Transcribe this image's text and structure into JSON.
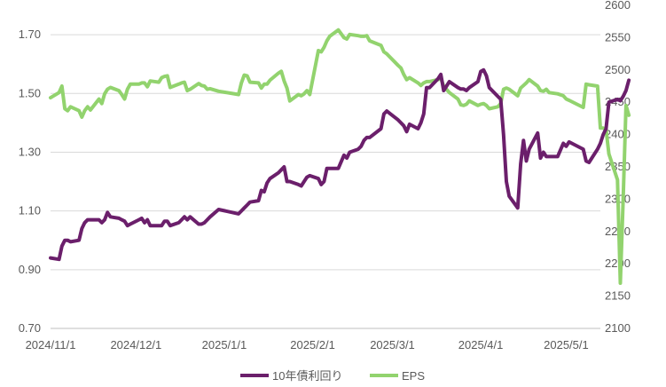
{
  "chart_data": {
    "type": "line",
    "title": "",
    "xlabel": "",
    "ylabel": "",
    "x_ticks": [
      "2024/11/1",
      "2024/12/1",
      "2025/1/1",
      "2025/2/1",
      "2025/3/1",
      "2025/4/1",
      "2025/5/1"
    ],
    "x_range": [
      "2024-11-01",
      "2025-05-13"
    ],
    "y_left": {
      "ticks": [
        "0.70",
        "0.90",
        "1.10",
        "1.30",
        "1.50",
        "1.70"
      ],
      "range": [
        0.7,
        1.8
      ]
    },
    "y_right": {
      "ticks": [
        "2100",
        "2150",
        "2200",
        "2250",
        "2300",
        "2350",
        "2400",
        "2450",
        "2500",
        "2550",
        "2600"
      ],
      "range": [
        2100,
        2600
      ]
    },
    "grid": "horizontal",
    "legend_position": "bottom",
    "colors": {
      "yield": "#6b1f6b",
      "eps": "#92d36e",
      "grid": "#d9d9d9",
      "axis": "#bfbfbf",
      "text": "#595959"
    },
    "series": [
      {
        "name": "10年債利回り",
        "axis": "left",
        "points": [
          [
            "2024-11-01",
            0.94
          ],
          [
            "2024-11-04",
            0.935
          ],
          [
            "2024-11-05",
            0.98
          ],
          [
            "2024-11-06",
            1.0
          ],
          [
            "2024-11-07",
            1.0
          ],
          [
            "2024-11-08",
            0.995
          ],
          [
            "2024-11-11",
            1.0
          ],
          [
            "2024-11-12",
            1.04
          ],
          [
            "2024-11-13",
            1.06
          ],
          [
            "2024-11-14",
            1.07
          ],
          [
            "2024-11-15",
            1.07
          ],
          [
            "2024-11-18",
            1.07
          ],
          [
            "2024-11-19",
            1.06
          ],
          [
            "2024-11-20",
            1.07
          ],
          [
            "2024-11-21",
            1.095
          ],
          [
            "2024-11-22",
            1.08
          ],
          [
            "2024-11-25",
            1.075
          ],
          [
            "2024-11-26",
            1.07
          ],
          [
            "2024-11-27",
            1.065
          ],
          [
            "2024-11-28",
            1.05
          ],
          [
            "2024-11-29",
            1.055
          ],
          [
            "2024-12-02",
            1.07
          ],
          [
            "2024-12-03",
            1.075
          ],
          [
            "2024-12-04",
            1.06
          ],
          [
            "2024-12-05",
            1.07
          ],
          [
            "2024-12-06",
            1.05
          ],
          [
            "2024-12-09",
            1.05
          ],
          [
            "2024-12-10",
            1.05
          ],
          [
            "2024-12-11",
            1.065
          ],
          [
            "2024-12-12",
            1.065
          ],
          [
            "2024-12-13",
            1.05
          ],
          [
            "2024-12-16",
            1.06
          ],
          [
            "2024-12-17",
            1.07
          ],
          [
            "2024-12-18",
            1.08
          ],
          [
            "2024-12-19",
            1.07
          ],
          [
            "2024-12-20",
            1.08
          ],
          [
            "2024-12-23",
            1.055
          ],
          [
            "2024-12-24",
            1.055
          ],
          [
            "2024-12-25",
            1.06
          ],
          [
            "2024-12-26",
            1.07
          ],
          [
            "2024-12-27",
            1.08
          ],
          [
            "2024-12-30",
            1.105
          ],
          [
            "2025-01-06",
            1.09
          ],
          [
            "2025-01-07",
            1.1
          ],
          [
            "2025-01-08",
            1.11
          ],
          [
            "2025-01-09",
            1.12
          ],
          [
            "2025-01-10",
            1.13
          ],
          [
            "2025-01-13",
            1.135
          ],
          [
            "2025-01-14",
            1.17
          ],
          [
            "2025-01-15",
            1.165
          ],
          [
            "2025-01-16",
            1.195
          ],
          [
            "2025-01-17",
            1.21
          ],
          [
            "2025-01-20",
            1.23
          ],
          [
            "2025-01-21",
            1.24
          ],
          [
            "2025-01-22",
            1.25
          ],
          [
            "2025-01-23",
            1.2
          ],
          [
            "2025-01-24",
            1.2
          ],
          [
            "2025-01-27",
            1.19
          ],
          [
            "2025-01-28",
            1.185
          ],
          [
            "2025-01-29",
            1.2
          ],
          [
            "2025-01-30",
            1.215
          ],
          [
            "2025-01-31",
            1.22
          ],
          [
            "2025-02-03",
            1.21
          ],
          [
            "2025-02-04",
            1.19
          ],
          [
            "2025-02-05",
            1.2
          ],
          [
            "2025-02-06",
            1.245
          ],
          [
            "2025-02-07",
            1.245
          ],
          [
            "2025-02-10",
            1.245
          ],
          [
            "2025-02-12",
            1.29
          ],
          [
            "2025-02-13",
            1.28
          ],
          [
            "2025-02-14",
            1.3
          ],
          [
            "2025-02-17",
            1.31
          ],
          [
            "2025-02-18",
            1.32
          ],
          [
            "2025-02-19",
            1.34
          ],
          [
            "2025-02-20",
            1.35
          ],
          [
            "2025-02-21",
            1.35
          ],
          [
            "2025-02-25",
            1.38
          ],
          [
            "2025-02-26",
            1.43
          ],
          [
            "2025-02-27",
            1.44
          ],
          [
            "2025-03-03",
            1.41
          ],
          [
            "2025-03-04",
            1.4
          ],
          [
            "2025-03-05",
            1.39
          ],
          [
            "2025-03-06",
            1.37
          ],
          [
            "2025-03-07",
            1.395
          ],
          [
            "2025-03-10",
            1.38
          ],
          [
            "2025-03-11",
            1.4
          ],
          [
            "2025-03-12",
            1.43
          ],
          [
            "2025-03-13",
            1.52
          ],
          [
            "2025-03-14",
            1.52
          ],
          [
            "2025-03-17",
            1.55
          ],
          [
            "2025-03-18",
            1.565
          ],
          [
            "2025-03-19",
            1.51
          ],
          [
            "2025-03-21",
            1.54
          ],
          [
            "2025-03-24",
            1.52
          ],
          [
            "2025-03-25",
            1.515
          ],
          [
            "2025-03-26",
            1.515
          ],
          [
            "2025-03-27",
            1.51
          ],
          [
            "2025-03-28",
            1.52
          ],
          [
            "2025-03-31",
            1.54
          ],
          [
            "2025-04-01",
            1.575
          ],
          [
            "2025-04-02",
            1.58
          ],
          [
            "2025-04-03",
            1.56
          ],
          [
            "2025-04-04",
            1.52
          ],
          [
            "2025-04-07",
            1.49
          ],
          [
            "2025-04-08",
            1.48
          ],
          [
            "2025-04-09",
            1.36
          ],
          [
            "2025-04-10",
            1.2
          ],
          [
            "2025-04-11",
            1.15
          ],
          [
            "2025-04-14",
            1.11
          ],
          [
            "2025-04-15",
            1.26
          ],
          [
            "2025-04-16",
            1.34
          ],
          [
            "2025-04-17",
            1.27
          ],
          [
            "2025-04-18",
            1.31
          ],
          [
            "2025-04-21",
            1.365
          ],
          [
            "2025-04-22",
            1.28
          ],
          [
            "2025-04-23",
            1.3
          ],
          [
            "2025-04-24",
            1.285
          ],
          [
            "2025-04-25",
            1.285
          ],
          [
            "2025-04-28",
            1.285
          ],
          [
            "2025-04-30",
            1.33
          ],
          [
            "2025-05-01",
            1.32
          ],
          [
            "2025-05-02",
            1.335
          ],
          [
            "2025-05-07",
            1.31
          ],
          [
            "2025-05-08",
            1.27
          ],
          [
            "2025-05-09",
            1.265
          ],
          [
            "2025-05-12",
            1.31
          ],
          [
            "2025-05-13",
            1.33
          ],
          [
            "2025-05-14",
            1.36
          ],
          [
            "2025-05-15",
            1.38
          ],
          [
            "2025-05-16",
            1.47
          ],
          [
            "2025-05-19",
            1.48
          ],
          [
            "2025-05-20",
            1.475
          ],
          [
            "2025-05-21",
            1.49
          ],
          [
            "2025-05-22",
            1.51
          ],
          [
            "2025-05-23",
            1.545
          ]
        ]
      },
      {
        "name": "EPS",
        "axis": "right",
        "points": [
          [
            "2024-11-01",
            2457
          ],
          [
            "2024-11-04",
            2465
          ],
          [
            "2024-11-05",
            2475
          ],
          [
            "2024-11-06",
            2440
          ],
          [
            "2024-11-07",
            2437
          ],
          [
            "2024-11-08",
            2443
          ],
          [
            "2024-11-11",
            2437
          ],
          [
            "2024-11-12",
            2427
          ],
          [
            "2024-11-13",
            2437
          ],
          [
            "2024-11-14",
            2443
          ],
          [
            "2024-11-15",
            2438
          ],
          [
            "2024-11-18",
            2455
          ],
          [
            "2024-11-19",
            2448
          ],
          [
            "2024-11-20",
            2463
          ],
          [
            "2024-11-21",
            2470
          ],
          [
            "2024-11-22",
            2473
          ],
          [
            "2024-11-25",
            2468
          ],
          [
            "2024-11-26",
            2462
          ],
          [
            "2024-11-27",
            2455
          ],
          [
            "2024-11-28",
            2470
          ],
          [
            "2024-11-29",
            2478
          ],
          [
            "2024-12-02",
            2478
          ],
          [
            "2024-12-03",
            2480
          ],
          [
            "2024-12-04",
            2480
          ],
          [
            "2024-12-05",
            2474
          ],
          [
            "2024-12-06",
            2483
          ],
          [
            "2024-12-09",
            2481
          ],
          [
            "2024-12-10",
            2488
          ],
          [
            "2024-12-11",
            2490
          ],
          [
            "2024-12-12",
            2491
          ],
          [
            "2024-12-13",
            2473
          ],
          [
            "2024-12-16",
            2478
          ],
          [
            "2024-12-17",
            2480
          ],
          [
            "2024-12-18",
            2481
          ],
          [
            "2024-12-19",
            2468
          ],
          [
            "2024-12-20",
            2470
          ],
          [
            "2024-12-23",
            2479
          ],
          [
            "2024-12-24",
            2476
          ],
          [
            "2024-12-25",
            2475
          ],
          [
            "2024-12-26",
            2470
          ],
          [
            "2024-12-27",
            2471
          ],
          [
            "2024-12-30",
            2467
          ],
          [
            "2025-01-06",
            2462
          ],
          [
            "2025-01-07",
            2480
          ],
          [
            "2025-01-08",
            2492
          ],
          [
            "2025-01-09",
            2491
          ],
          [
            "2025-01-10",
            2481
          ],
          [
            "2025-01-13",
            2480
          ],
          [
            "2025-01-14",
            2472
          ],
          [
            "2025-01-15",
            2478
          ],
          [
            "2025-01-16",
            2478
          ],
          [
            "2025-01-17",
            2484
          ],
          [
            "2025-01-20",
            2495
          ],
          [
            "2025-01-21",
            2498
          ],
          [
            "2025-01-22",
            2483
          ],
          [
            "2025-01-23",
            2472
          ],
          [
            "2025-01-24",
            2452
          ],
          [
            "2025-01-27",
            2462
          ],
          [
            "2025-01-28",
            2460
          ],
          [
            "2025-01-29",
            2463
          ],
          [
            "2025-01-30",
            2468
          ],
          [
            "2025-01-31",
            2462
          ],
          [
            "2025-02-03",
            2530
          ],
          [
            "2025-02-04",
            2528
          ],
          [
            "2025-02-05",
            2535
          ],
          [
            "2025-02-06",
            2545
          ],
          [
            "2025-02-07",
            2552
          ],
          [
            "2025-02-10",
            2562
          ],
          [
            "2025-02-12",
            2550
          ],
          [
            "2025-02-13",
            2548
          ],
          [
            "2025-02-14",
            2555
          ],
          [
            "2025-02-17",
            2553
          ],
          [
            "2025-02-18",
            2552
          ],
          [
            "2025-02-19",
            2552
          ],
          [
            "2025-02-20",
            2553
          ],
          [
            "2025-02-21",
            2545
          ],
          [
            "2025-02-25",
            2538
          ],
          [
            "2025-02-26",
            2528
          ],
          [
            "2025-02-27",
            2525
          ],
          [
            "2025-03-03",
            2507
          ],
          [
            "2025-03-04",
            2503
          ],
          [
            "2025-03-05",
            2493
          ],
          [
            "2025-03-06",
            2485
          ],
          [
            "2025-03-07",
            2488
          ],
          [
            "2025-03-10",
            2480
          ],
          [
            "2025-03-11",
            2476
          ],
          [
            "2025-03-12",
            2480
          ],
          [
            "2025-03-13",
            2482
          ],
          [
            "2025-03-14",
            2482
          ],
          [
            "2025-03-17",
            2485
          ],
          [
            "2025-03-18",
            2487
          ],
          [
            "2025-03-19",
            2475
          ],
          [
            "2025-03-21",
            2465
          ],
          [
            "2025-03-24",
            2455
          ],
          [
            "2025-03-25",
            2446
          ],
          [
            "2025-03-26",
            2445
          ],
          [
            "2025-03-27",
            2447
          ],
          [
            "2025-03-28",
            2452
          ],
          [
            "2025-03-31",
            2445
          ],
          [
            "2025-04-01",
            2447
          ],
          [
            "2025-04-02",
            2448
          ],
          [
            "2025-04-03",
            2445
          ],
          [
            "2025-04-04",
            2440
          ],
          [
            "2025-04-07",
            2443
          ],
          [
            "2025-04-08",
            2448
          ],
          [
            "2025-04-09",
            2470
          ],
          [
            "2025-04-10",
            2472
          ],
          [
            "2025-04-11",
            2470
          ],
          [
            "2025-04-14",
            2460
          ],
          [
            "2025-04-15",
            2472
          ],
          [
            "2025-04-16",
            2476
          ],
          [
            "2025-04-17",
            2480
          ],
          [
            "2025-04-18",
            2485
          ],
          [
            "2025-04-21",
            2475
          ],
          [
            "2025-04-22",
            2468
          ],
          [
            "2025-04-23",
            2467
          ],
          [
            "2025-04-24",
            2470
          ],
          [
            "2025-04-25",
            2465
          ],
          [
            "2025-04-28",
            2463
          ],
          [
            "2025-04-30",
            2460
          ],
          [
            "2025-05-01",
            2455
          ],
          [
            "2025-05-02",
            2453
          ],
          [
            "2025-05-07",
            2442
          ],
          [
            "2025-05-08",
            2478
          ],
          [
            "2025-05-09",
            2477
          ],
          [
            "2025-05-12",
            2475
          ],
          [
            "2025-05-13",
            2410
          ],
          [
            "2025-05-14",
            2410
          ],
          [
            "2025-05-15",
            2408
          ],
          [
            "2025-05-16",
            2370
          ],
          [
            "2025-05-19",
            2330
          ],
          [
            "2025-05-20",
            2170
          ],
          [
            "2025-05-21",
            2300
          ],
          [
            "2025-05-22",
            2445
          ],
          [
            "2025-05-23",
            2430
          ]
        ]
      }
    ]
  }
}
